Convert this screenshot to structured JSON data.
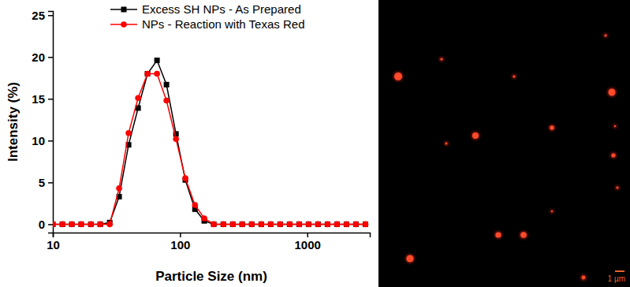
{
  "chart_data": {
    "type": "line",
    "x_label": "Particle Size (nm)",
    "y_label": "Intensity (%)",
    "log": "x",
    "grid": false,
    "legend": "top",
    "xlim": [
      10,
      3100
    ],
    "xticks": [
      10,
      100,
      1000
    ],
    "ylim": [
      -1,
      25.5
    ],
    "yticks": [
      0,
      5,
      10,
      15,
      20,
      25
    ],
    "x": [
      10,
      11.9,
      14.1,
      16.7,
      19.9,
      23.6,
      28,
      33.2,
      39.4,
      46.8,
      55.5,
      65.9,
      78.2,
      92.9,
      110,
      131,
      155,
      184,
      219,
      260,
      308,
      366,
      435,
      516,
      612,
      727,
      863,
      1024,
      1215,
      1443,
      1712,
      2033,
      2413,
      2864
    ],
    "series": [
      {
        "name": "Excess SH NPs - As Prepared",
        "color": "#000000",
        "marker": "square",
        "line_style": "solid",
        "values": [
          0,
          0,
          0,
          0,
          0,
          0,
          0.2,
          3.3,
          9.5,
          13.9,
          18.0,
          19.6,
          16.7,
          10.8,
          5.3,
          1.8,
          0.4,
          0,
          0,
          0,
          0,
          0,
          0,
          0,
          0,
          0,
          0,
          0,
          0,
          0,
          0,
          0,
          0,
          0
        ]
      },
      {
        "name": "NPs - Reaction with Texas Red",
        "color": "#ff0000",
        "marker": "circle",
        "line_style": "solid",
        "values": [
          0,
          0,
          0,
          0,
          0,
          0,
          0,
          4.3,
          10.9,
          15.1,
          18.0,
          18.0,
          14.8,
          10.2,
          5.5,
          2.3,
          0.7,
          0,
          0,
          0,
          0,
          0,
          0,
          0,
          0,
          0,
          0,
          0,
          0,
          0,
          0,
          0,
          0,
          0
        ]
      }
    ]
  },
  "micrograph": {
    "scale_bar": "1 µm"
  }
}
